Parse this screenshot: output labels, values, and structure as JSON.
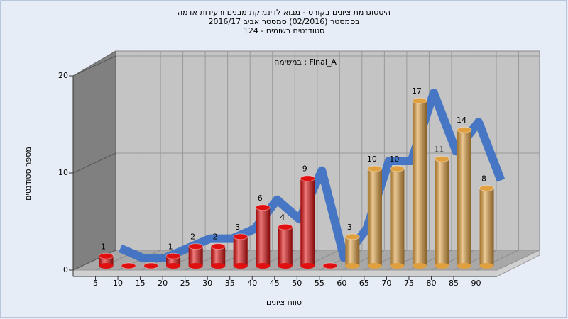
{
  "chart_data": {
    "type": "bar3d",
    "title_lines": [
      "היסטוגרמת ציונים בקורס - מבוא לדינמיקת מבנים ורעידות אדמה",
      "בסמסטר  (02/2016)  סמסטר אביב 2016/17",
      "סטודנטים רשומים - 124"
    ],
    "subtitle": "במשימה : Final_A",
    "x_label": "טווח ציונים",
    "y_label": "מספר סטודנטים",
    "categories": [
      5,
      10,
      15,
      20,
      25,
      30,
      35,
      40,
      45,
      50,
      55,
      60,
      65,
      70,
      75,
      80,
      85,
      90
    ],
    "values": [
      1,
      0,
      0,
      1,
      2,
      2,
      3,
      6,
      4,
      9,
      0,
      3,
      10,
      10,
      17,
      11,
      14,
      8
    ],
    "colors": [
      "#e01010",
      "#e01010",
      "#e01010",
      "#e01010",
      "#e01010",
      "#e01010",
      "#e01010",
      "#e01010",
      "#e01010",
      "#e01010",
      "#e01010",
      "#e0a040",
      "#e0a040",
      "#e0a040",
      "#e0a040",
      "#e0a040",
      "#e0a040",
      "#e0a040"
    ],
    "line_color": "#3a6fc4",
    "ylim": [
      0,
      20
    ],
    "yticks": [
      0,
      10,
      20
    ],
    "grid": true
  }
}
